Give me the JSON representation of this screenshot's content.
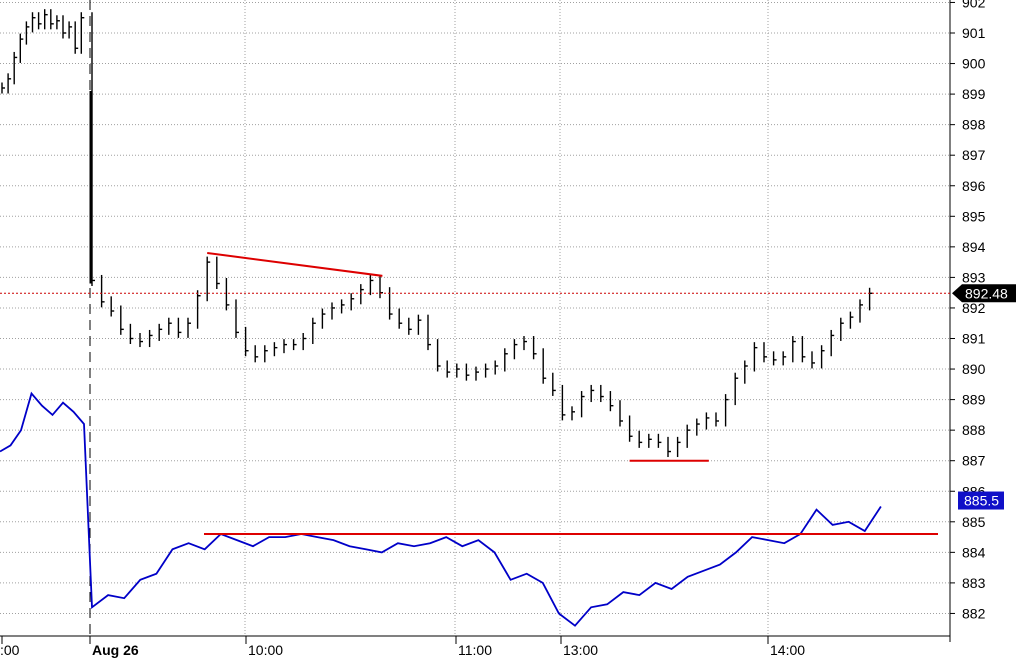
{
  "chart_data": {
    "type": "line",
    "title": "",
    "xlabel": "",
    "ylabel": "",
    "ylim": [
      881.3,
      902.1
    ],
    "grid": true,
    "x_ticks": [
      ":00",
      "Aug 26",
      "10:00",
      "11:00",
      "13:00",
      "14:00"
    ],
    "y_ticks": [
      902,
      901,
      900,
      899,
      898,
      897,
      896,
      895,
      894,
      893,
      892,
      891,
      890,
      889,
      888,
      887,
      886,
      885,
      884,
      883,
      882
    ],
    "last_price_tag": "892.48",
    "last_price": 892.48,
    "line_tag": "885.5",
    "line_last": 885.5,
    "colors": {
      "price_bars": "#000000",
      "line": "#0000c8",
      "trendlines": "#dd0000",
      "grid": "#a0a0a0",
      "price_tag_bg": "#000000",
      "line_tag_bg": "#1010c8"
    },
    "series": [
      {
        "kind": "price_bars",
        "values": [
          899.2,
          899.5,
          900.2,
          900.8,
          901.2,
          901.5,
          901.3,
          901.6,
          901.3,
          901.4,
          901.0,
          901.2,
          900.5,
          901.5,
          892.9,
          892.2,
          891.9,
          891.3,
          891.0,
          890.9,
          891.1,
          891.3,
          891.5,
          891.2,
          891.5,
          892.4,
          893.5,
          892.8,
          892.1,
          891.2,
          890.6,
          890.4,
          890.6,
          890.7,
          890.8,
          890.8,
          891.0,
          891.5,
          891.8,
          892.0,
          892.1,
          892.3,
          892.6,
          892.9,
          892.5,
          891.8,
          891.5,
          891.3,
          891.6,
          890.8,
          890.1,
          889.9,
          890.0,
          889.8,
          889.9,
          890.0,
          890.1,
          890.5,
          890.8,
          890.9,
          890.5,
          889.7,
          889.3,
          888.5,
          888.6,
          889.1,
          889.3,
          889.1,
          888.8,
          888.3,
          887.8,
          887.6,
          887.7,
          887.6,
          887.3,
          887.6,
          888.0,
          888.2,
          888.4,
          888.3,
          889.0,
          889.7,
          890.1,
          890.7,
          890.4,
          890.3,
          890.4,
          890.9,
          890.4,
          890.2,
          890.6,
          891.1,
          891.5,
          891.7,
          892.1,
          892.48
        ]
      },
      {
        "kind": "line",
        "values": [
          887.3,
          887.5,
          888.0,
          889.2,
          888.8,
          888.5,
          888.9,
          888.6,
          888.2,
          882.2,
          882.6,
          882.5,
          883.1,
          883.3,
          884.1,
          884.3,
          884.1,
          884.6,
          884.4,
          884.2,
          884.5,
          884.5,
          884.6,
          884.5,
          884.4,
          884.2,
          884.1,
          884.0,
          884.3,
          884.2,
          884.3,
          884.5,
          884.2,
          884.4,
          884.0,
          883.1,
          883.3,
          883.0,
          882.0,
          881.6,
          882.2,
          882.3,
          882.7,
          882.6,
          883.0,
          882.8,
          883.2,
          883.4,
          883.6,
          884.0,
          884.5,
          884.4,
          884.3,
          884.6,
          885.4,
          884.9,
          885.0,
          884.7,
          885.5
        ],
        "reference_level": 884.6
      }
    ],
    "annotations": [
      {
        "kind": "trendline",
        "from": {
          "bar": 26,
          "price": 893.8
        },
        "to": {
          "bar": 43,
          "price": 893.05
        }
      },
      {
        "kind": "trendline",
        "from": {
          "bar": 70,
          "price": 887.0
        },
        "to": {
          "bar": 77,
          "price": 887.0
        }
      },
      {
        "kind": "horizontal",
        "price": 884.6
      }
    ]
  }
}
